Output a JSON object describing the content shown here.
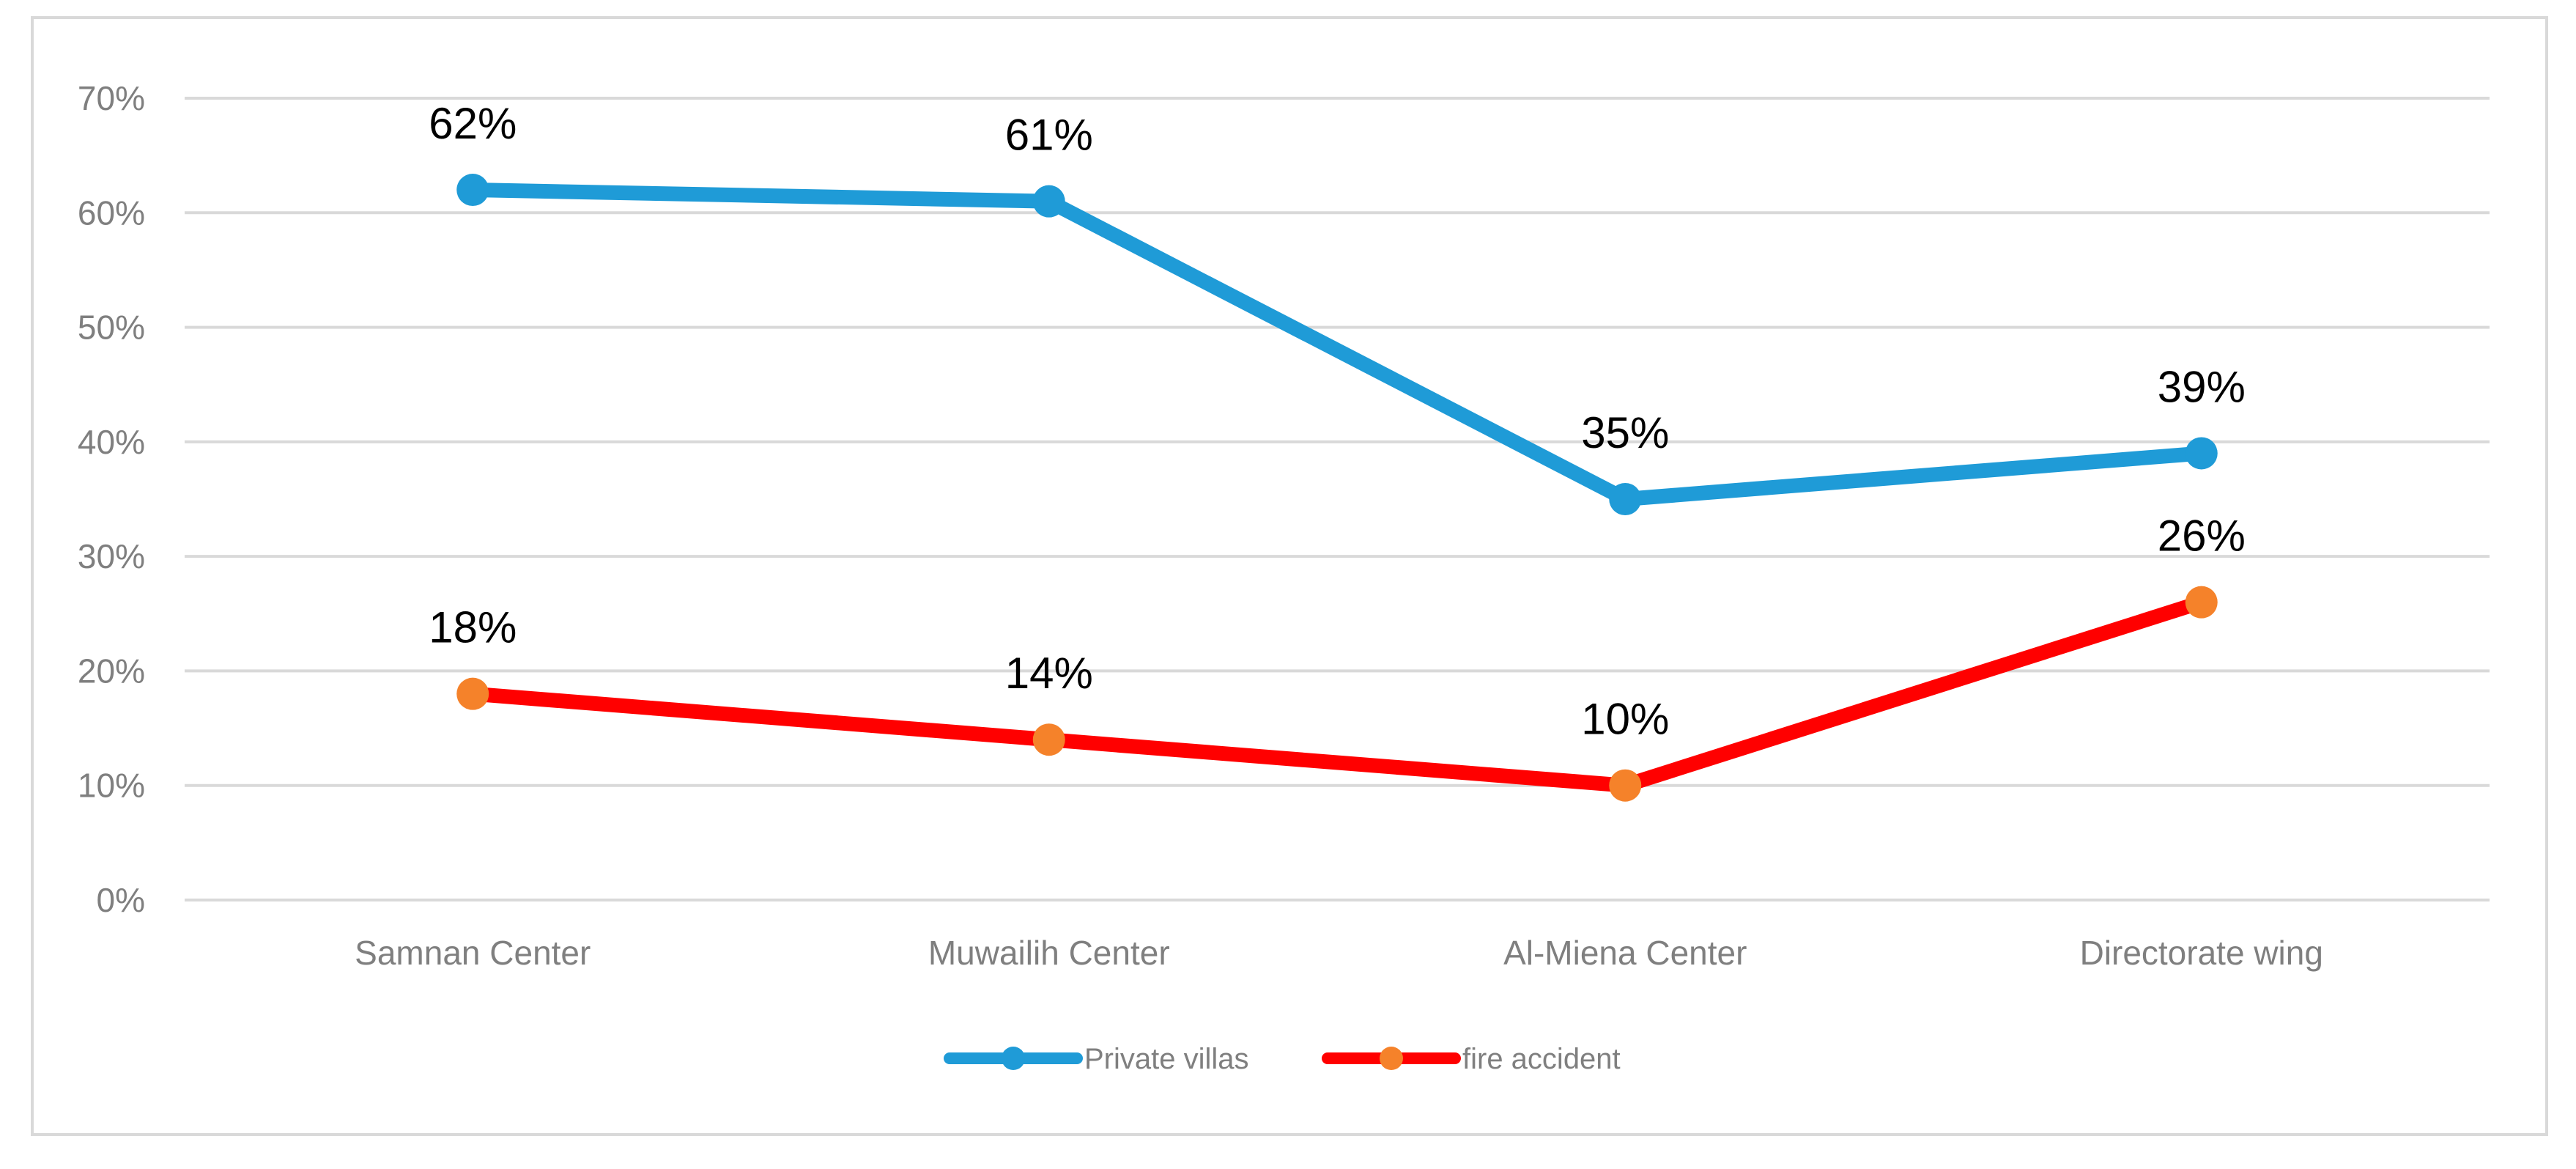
{
  "chart_data": {
    "type": "line",
    "categories": [
      "Samnan Center",
      "Muwailih Center",
      "Al-Miena Center",
      "Directorate wing"
    ],
    "series": [
      {
        "name": "Private villas",
        "values": [
          62,
          61,
          35,
          39
        ],
        "labels": [
          "62%",
          "61%",
          "35%",
          "39%"
        ],
        "line_color": "#1f9bd7",
        "marker_color": "#1f9bd7"
      },
      {
        "name": "fire accident",
        "values": [
          18,
          14,
          10,
          26
        ],
        "labels": [
          "18%",
          "14%",
          "10%",
          "26%"
        ],
        "line_color": "#ff0000",
        "marker_color": "#f5822a"
      }
    ],
    "y_ticks": [
      "0%",
      "10%",
      "20%",
      "30%",
      "40%",
      "50%",
      "60%",
      "70%"
    ],
    "ylim": [
      0,
      70
    ],
    "grid": true,
    "legend_position": "bottom",
    "grid_color": "#d9d9d9",
    "tick_color": "#7f7f7f"
  }
}
